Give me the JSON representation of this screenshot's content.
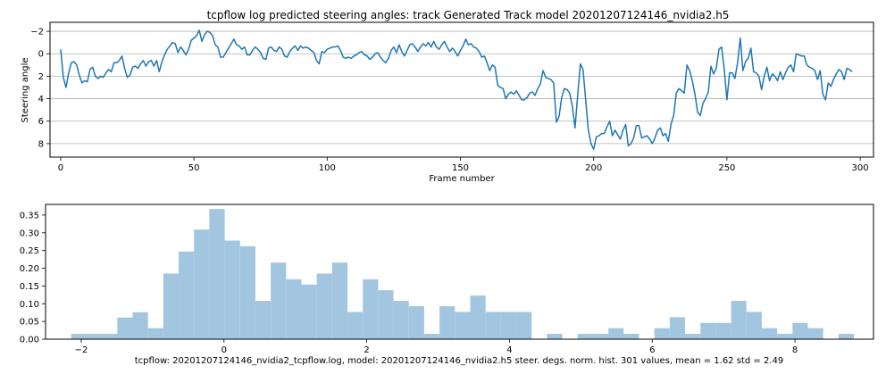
{
  "chart_data": [
    {
      "type": "line",
      "title": "tcpflow log predicted steering angles: track Generated Track model 20201207124146_nvidia2.h5",
      "xlabel": "Frame number",
      "ylabel": "Steering angle",
      "xlim": [
        -4,
        305
      ],
      "ylim": [
        9.2,
        -2.8
      ],
      "y_inverted": true,
      "xticks": [
        0,
        50,
        100,
        150,
        200,
        250,
        300
      ],
      "yticks": [
        -2,
        0,
        2,
        4,
        6,
        8
      ],
      "ytick_labels": [
        "−2",
        "0",
        "2",
        "4",
        "6",
        "8"
      ],
      "grid": "horizontal",
      "line_color": "#1f77b4",
      "series": [
        {
          "x_start": 0,
          "x_step": 1,
          "values": [
            -0.4,
            2.1,
            3.0,
            1.7,
            0.8,
            0.7,
            1.0,
            1.9,
            2.6,
            2.4,
            2.5,
            1.4,
            1.2,
            2.0,
            2.2,
            2.0,
            2.1,
            1.7,
            1.4,
            1.6,
            0.8,
            0.8,
            0.6,
            0.2,
            1.3,
            2.1,
            1.9,
            1.2,
            1.1,
            1.3,
            0.9,
            0.6,
            1.1,
            0.7,
            0.6,
            1.1,
            0.6,
            1.6,
            0.7,
            0.1,
            -0.4,
            -0.7,
            -1.0,
            -0.9,
            -0.1,
            -0.6,
            -0.3,
            0.1,
            -0.4,
            -1.2,
            -1.4,
            -1.6,
            -2.1,
            -1.1,
            -1.7,
            -2.0,
            -1.9,
            -1.6,
            -0.8,
            -0.6,
            0.3,
            0.3,
            -0.1,
            -0.5,
            -0.9,
            -1.3,
            -0.8,
            -0.7,
            -0.4,
            -0.6,
            0.1,
            0.1,
            -0.3,
            -0.6,
            -0.4,
            -0.1,
            0.4,
            0.5,
            -0.5,
            -0.6,
            -0.3,
            -0.2,
            -0.6,
            -0.4,
            0.2,
            0.3,
            -0.2,
            -0.5,
            -0.7,
            -0.3,
            -0.7,
            -0.5,
            -0.6,
            -0.5,
            -0.3,
            -0.1,
            0.6,
            0.9,
            -0.2,
            -0.1,
            -0.4,
            -0.5,
            -0.6,
            -0.6,
            -0.7,
            -0.3,
            0.3,
            0.4,
            0.3,
            0.4,
            0.2,
            0.1,
            -0.1,
            -0.2,
            0.1,
            0.2,
            0.5,
            0.3,
            0.0,
            -0.1,
            0.3,
            0.6,
            0.8,
            0.4,
            -0.3,
            -0.6,
            -0.1,
            -0.8,
            -0.2,
            0.2,
            -0.3,
            -0.8,
            -0.9,
            -0.6,
            -0.2,
            -0.6,
            -0.9,
            -0.7,
            -1.0,
            -0.6,
            -1.1,
            -0.6,
            -0.4,
            -0.8,
            -1.1,
            -0.6,
            -0.2,
            -0.5,
            -0.2,
            0.2,
            -0.3,
            -0.7,
            -1.3,
            -0.8,
            -0.9,
            -0.6,
            -0.5,
            -0.2,
            0.3,
            0.2,
            0.8,
            1.5,
            1.0,
            1.2,
            2.8,
            3.0,
            3.1,
            4.0,
            3.6,
            3.4,
            3.6,
            3.3,
            3.7,
            4.1,
            4.1,
            3.9,
            3.5,
            3.4,
            3.7,
            3.1,
            2.7,
            1.5,
            2.1,
            2.2,
            2.3,
            2.6,
            6.1,
            5.6,
            3.9,
            3.1,
            3.2,
            3.5,
            4.7,
            6.6,
            3.7,
            0.9,
            1.4,
            4.1,
            6.8,
            8.0,
            8.5,
            7.4,
            7.3,
            7.1,
            7.1,
            6.5,
            6.0,
            7.3,
            6.8,
            7.2,
            7.6,
            6.8,
            6.3,
            8.2,
            8.0,
            7.5,
            6.4,
            6.4,
            7.5,
            7.4,
            7.3,
            7.6,
            8.0,
            7.5,
            6.8,
            6.6,
            7.3,
            7.1,
            7.8,
            6.3,
            5.5,
            3.5,
            3.1,
            3.3,
            3.5,
            1.0,
            1.5,
            2.4,
            3.6,
            5.2,
            5.5,
            4.4,
            4.0,
            3.4,
            1.1,
            1.8,
            1.3,
            -0.4,
            -0.6,
            1.4,
            4.1,
            1.7,
            1.7,
            2.2,
            0.8,
            -1.4,
            1.5,
            0.7,
            0.4,
            -0.5,
            1.6,
            1.7,
            2.0,
            3.2,
            2.0,
            1.2,
            2.4,
            1.8,
            2.0,
            2.4,
            1.6,
            2.3,
            1.7,
            1.2,
            1.0,
            1.6,
            0.0,
            0.1,
            0.2,
            0.2,
            1.0,
            1.2,
            1.3,
            1.5,
            2.3,
            1.5,
            3.6,
            4.1,
            2.6,
            2.9,
            2.3,
            1.8,
            1.4,
            1.6,
            2.3,
            1.3,
            1.4,
            1.6
          ]
        }
      ]
    },
    {
      "type": "bar",
      "subtype": "histogram",
      "xlabel": "tcpflow: 20201207124146_nvidia2_tcpflow.log, model: 20201207124146_nvidia2.h5 steer. degs. norm. hist. 301 values, mean = 1.62 std = 2.49",
      "xlim": [
        -2.5,
        9.1
      ],
      "ylim": [
        0,
        0.38
      ],
      "xticks": [
        -2,
        0,
        2,
        4,
        6,
        8
      ],
      "xtick_labels": [
        "−2",
        "0",
        "2",
        "4",
        "6",
        "8"
      ],
      "yticks": [
        0.0,
        0.05,
        0.1,
        0.15,
        0.2,
        0.25,
        0.3,
        0.35
      ],
      "ytick_labels": [
        "0.00",
        "0.05",
        "0.10",
        "0.15",
        "0.20",
        "0.25",
        "0.30",
        "0.35"
      ],
      "bar_color": "#a3c6e0",
      "bin_start": -2.14,
      "bin_width": 0.215,
      "values": [
        0.015,
        0.015,
        0.015,
        0.061,
        0.076,
        0.031,
        0.185,
        0.247,
        0.309,
        0.367,
        0.278,
        0.262,
        0.108,
        0.216,
        0.169,
        0.154,
        0.185,
        0.216,
        0.077,
        0.169,
        0.138,
        0.108,
        0.093,
        0.015,
        0.093,
        0.077,
        0.123,
        0.077,
        0.077,
        0.077,
        0.0,
        0.015,
        0.0,
        0.015,
        0.015,
        0.031,
        0.015,
        0.0,
        0.031,
        0.062,
        0.015,
        0.046,
        0.046,
        0.108,
        0.077,
        0.031,
        0.015,
        0.046,
        0.031,
        0.0,
        0.015
      ]
    }
  ]
}
